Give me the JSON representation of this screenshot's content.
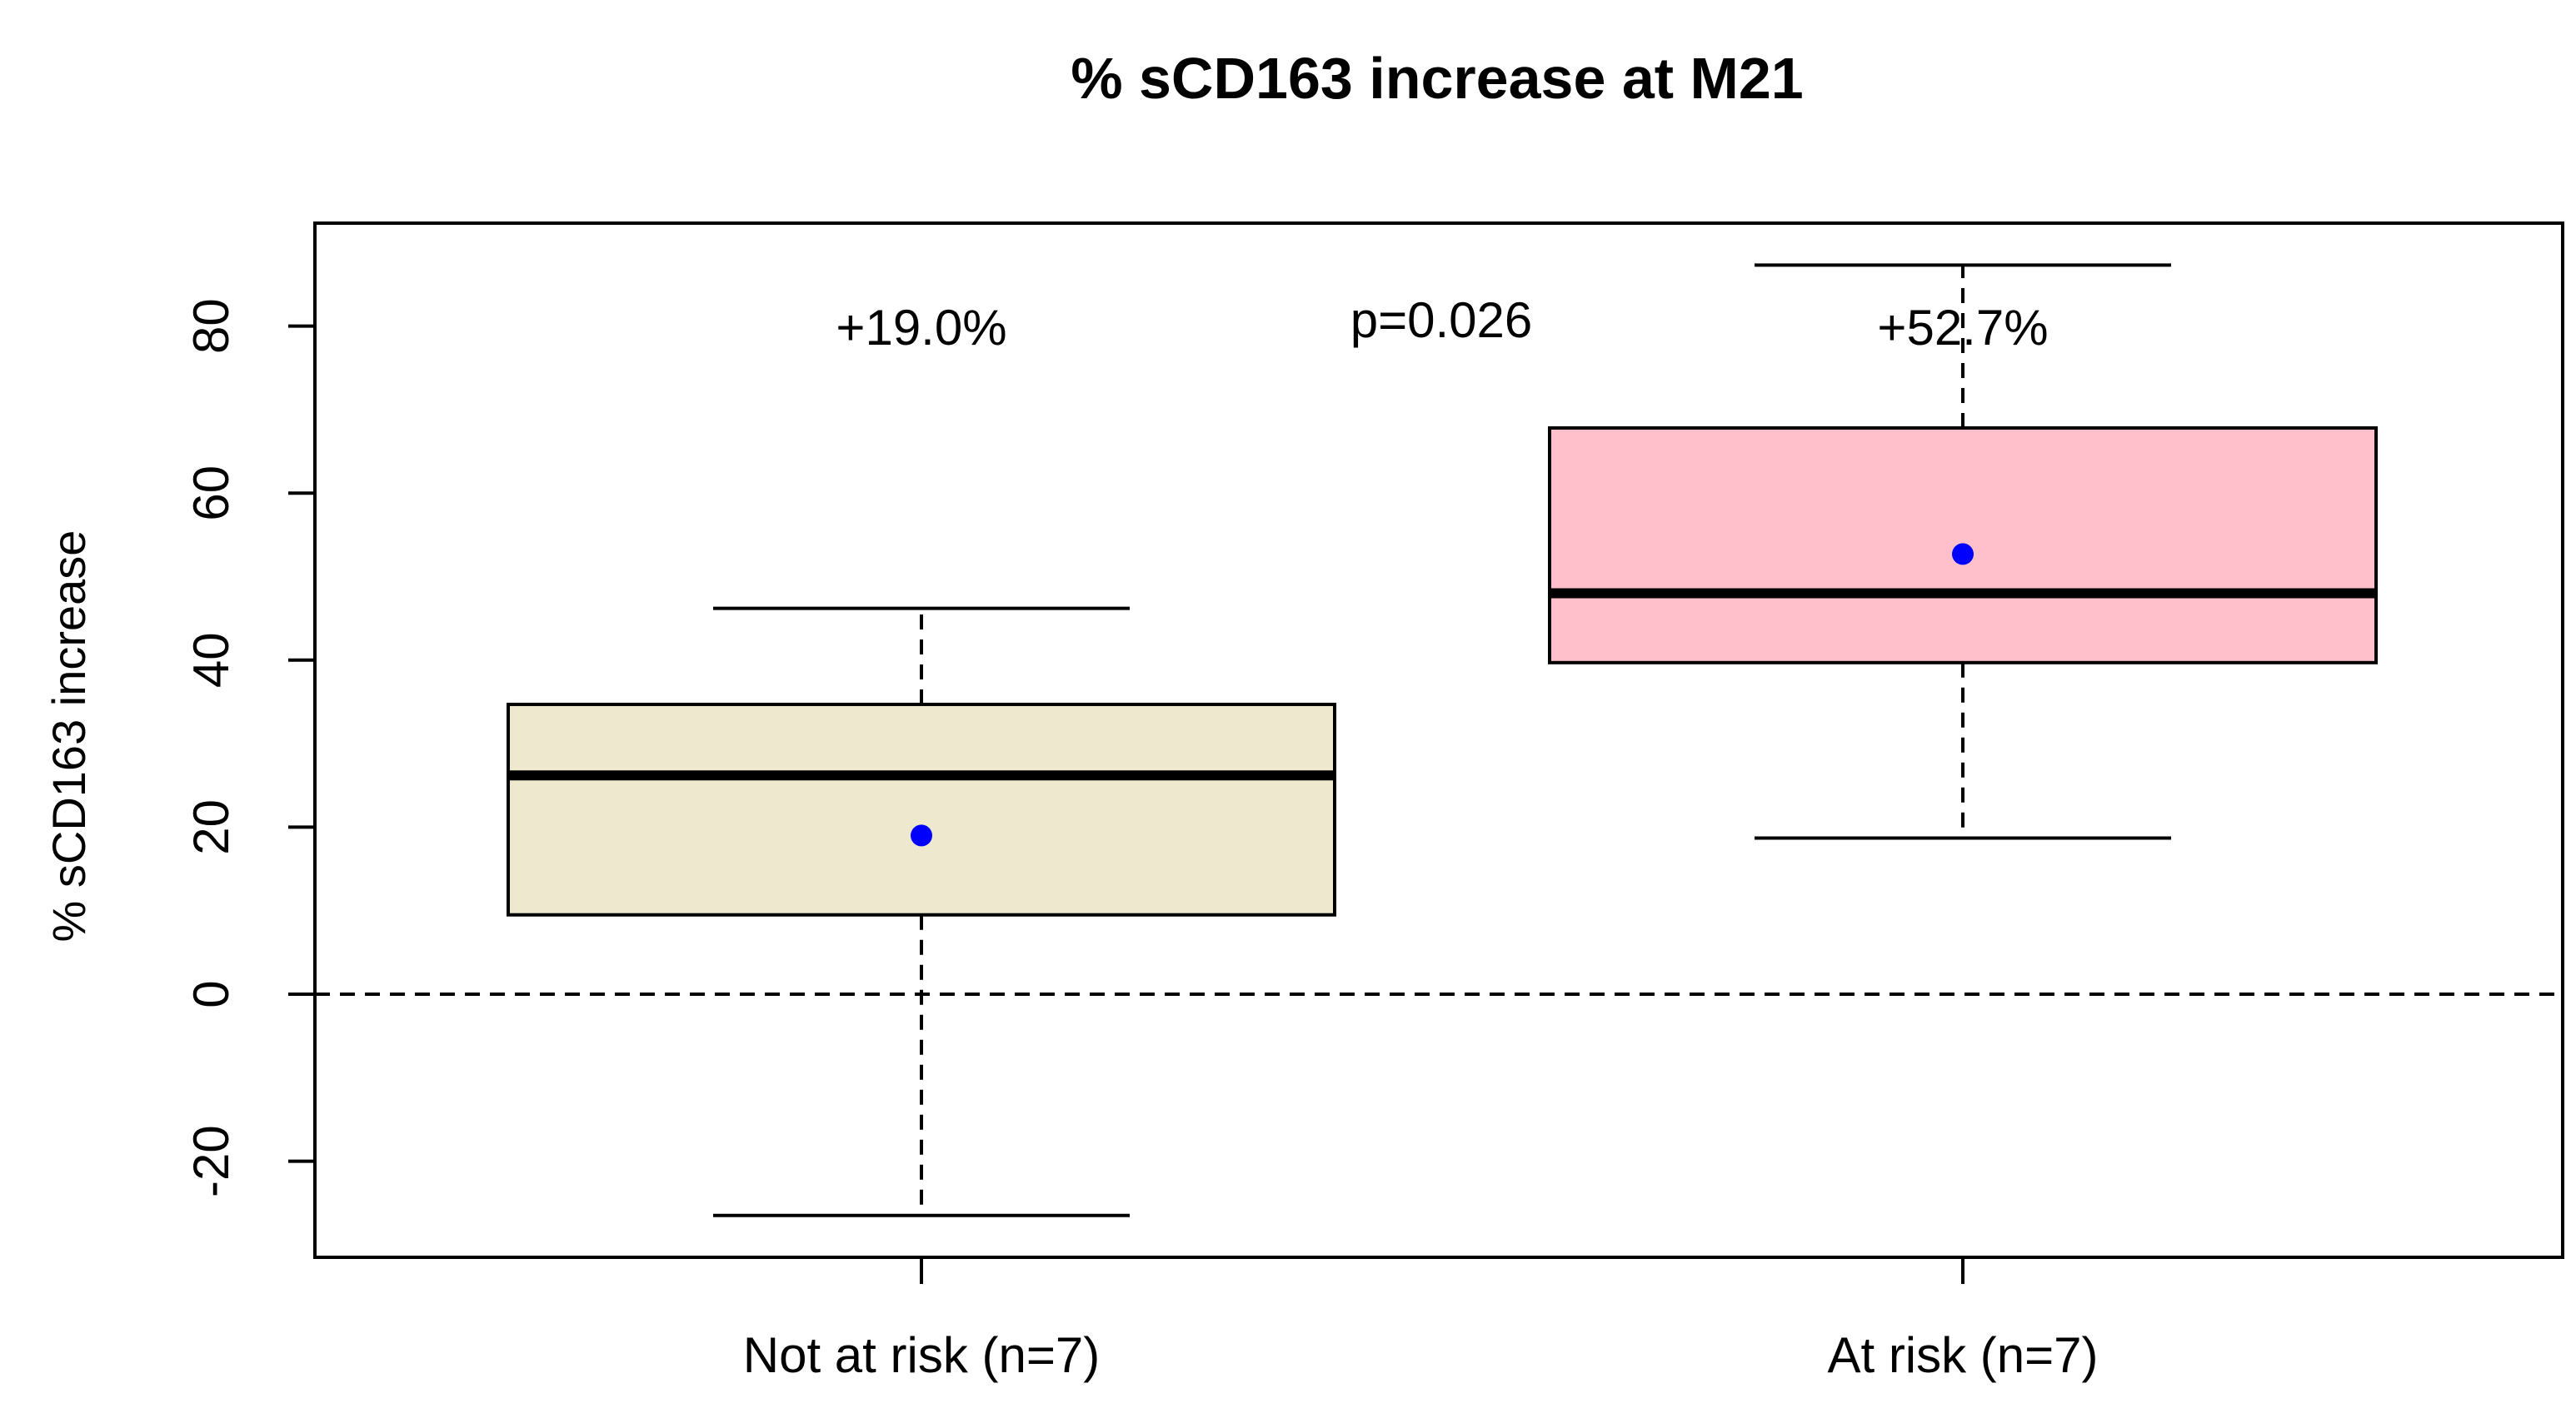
{
  "chart_data": {
    "type": "box",
    "title": "% sCD163 increase at M21",
    "xlabel": "",
    "ylabel": "% sCD163 increase",
    "ylim": [
      -31,
      92
    ],
    "yticks": [
      -20,
      0,
      20,
      40,
      60,
      80
    ],
    "ytick_labels": [
      "-20",
      "0",
      "20",
      "40",
      "60",
      "80"
    ],
    "reference_line": 0,
    "categories": [
      "Not at risk (n=7)",
      "At risk (n=7)"
    ],
    "boxes": [
      {
        "name": "Not at risk (n=7)",
        "whisker_low": -26.5,
        "q1": 9.5,
        "median": 26.2,
        "q3": 34.7,
        "whisker_high": 46.2,
        "mean": 19.0,
        "fill": "#eee8cf",
        "annotation": "+19.0%"
      },
      {
        "name": "At risk (n=7)",
        "whisker_low": 18.7,
        "q1": 39.7,
        "median": 48.0,
        "q3": 67.8,
        "whisker_high": 87.3,
        "mean": 52.7,
        "fill": "#ffc0cb",
        "annotation": "+52.7%"
      }
    ],
    "p_value_label": "p=0.026",
    "mean_marker_color": "#0000ff"
  }
}
